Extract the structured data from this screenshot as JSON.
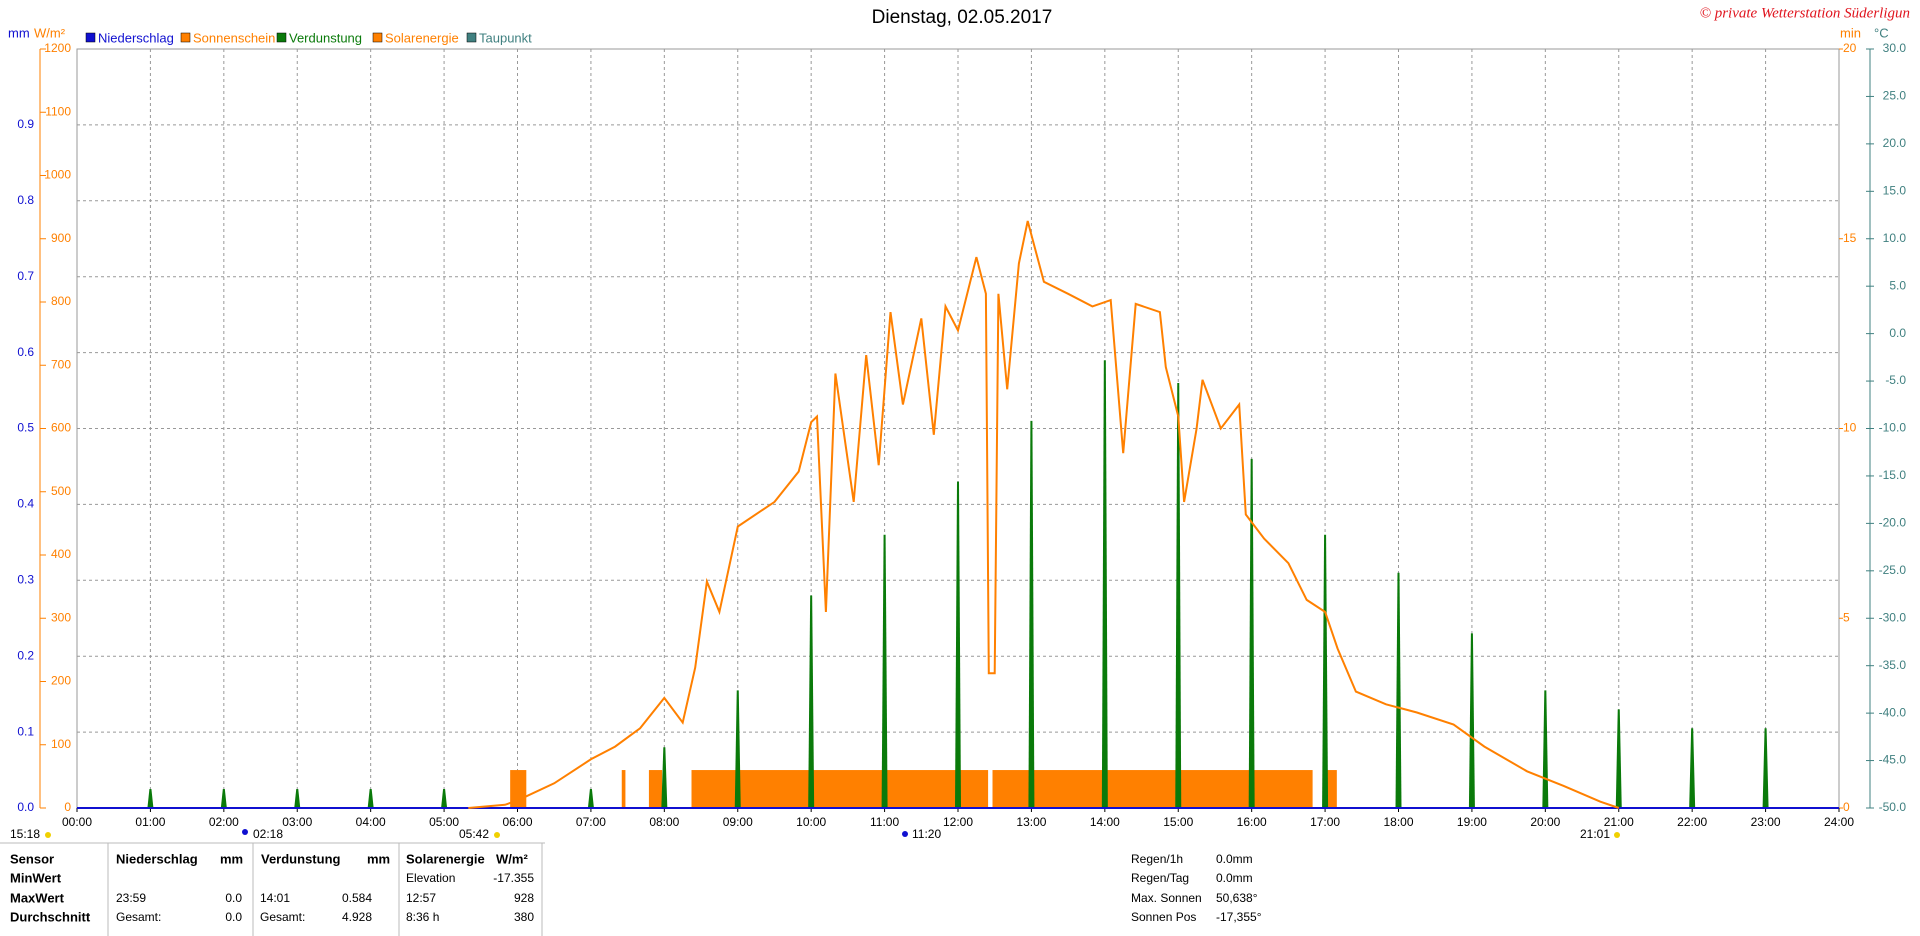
{
  "chart_data": {
    "type": "line",
    "title": "Dienstag, 02.05.2017",
    "credit": "© private Wetterstation Süderligun",
    "y_unit": "W/m²",
    "y2_unit": "mm",
    "y3_unit": "min",
    "y4_unit": "°C",
    "grid": true,
    "xlim": [
      0,
      24
    ],
    "xticks": [
      {
        "value": 0,
        "label": "00:00"
      },
      {
        "value": 1,
        "label": "01:00"
      },
      {
        "value": 2,
        "label": "02:00"
      },
      {
        "value": 3,
        "label": "03:00"
      },
      {
        "value": 4,
        "label": "04:00"
      },
      {
        "value": 5,
        "label": "05:00"
      },
      {
        "value": 6,
        "label": "06:00"
      },
      {
        "value": 7,
        "label": "07:00"
      },
      {
        "value": 8,
        "label": "08:00"
      },
      {
        "value": 9,
        "label": "09:00"
      },
      {
        "value": 10,
        "label": "10:00"
      },
      {
        "value": 11,
        "label": "11:00"
      },
      {
        "value": 12,
        "label": "12:00"
      },
      {
        "value": 13,
        "label": "13:00"
      },
      {
        "value": 14,
        "label": "14:00"
      },
      {
        "value": 15,
        "label": "15:00"
      },
      {
        "value": 16,
        "label": "16:00"
      },
      {
        "value": 17,
        "label": "17:00"
      },
      {
        "value": 18,
        "label": "18:00"
      },
      {
        "value": 19,
        "label": "19:00"
      },
      {
        "value": 20,
        "label": "20:00"
      },
      {
        "value": 21,
        "label": "21:00"
      },
      {
        "value": 22,
        "label": "22:00"
      },
      {
        "value": 23,
        "label": "23:00"
      },
      {
        "value": 24,
        "label": "24:00"
      }
    ],
    "ylim": [
      0,
      1200
    ],
    "yticks": [
      0,
      100,
      200,
      300,
      400,
      500,
      600,
      700,
      800,
      900,
      1000,
      1100,
      1200
    ],
    "y2lim": [
      0,
      1
    ],
    "y2ticks": [
      {
        "value": 0,
        "label": "0.0"
      },
      0.1,
      0.2,
      0.3,
      0.4,
      0.5,
      0.6,
      0.7,
      0.8,
      0.9
    ],
    "y3lim": [
      0,
      20
    ],
    "y3ticks": [
      0,
      5,
      10,
      15,
      20
    ],
    "y4lim": [
      -50,
      30
    ],
    "y4ticks": [
      {
        "value": -50,
        "label": "-50.0"
      },
      {
        "value": -45,
        "label": "-45.0"
      },
      {
        "value": -40,
        "label": "-40.0"
      },
      {
        "value": -35,
        "label": "-35.0"
      },
      {
        "value": -30,
        "label": "-30.0"
      },
      {
        "value": -25,
        "label": "-25.0"
      },
      {
        "value": -20,
        "label": "-20.0"
      },
      {
        "value": -15,
        "label": "-15.0"
      },
      {
        "value": -10,
        "label": "-10.0"
      },
      {
        "value": -5,
        "label": "-5.0"
      },
      {
        "value": 0,
        "label": "0.0"
      },
      {
        "value": 5,
        "label": "5.0"
      },
      {
        "value": 10,
        "label": "10.0"
      },
      {
        "value": 15,
        "label": "15.0"
      },
      {
        "value": 20,
        "label": "20.0"
      },
      {
        "value": 25,
        "label": "25.0"
      },
      {
        "value": 30,
        "label": "30.0"
      }
    ],
    "series": [
      {
        "name": "Niederschlag",
        "color": "#1010d0",
        "kind": "line",
        "axis": "y2",
        "x": [
          0,
          24
        ],
        "values": [
          0,
          0
        ]
      },
      {
        "name": "Sonnenschein",
        "color": "#ff8000",
        "kind": "bins",
        "axis": "y3",
        "bins": [
          5.9,
          6.12,
          7.42,
          7.47,
          7.79,
          7.97,
          8.37,
          12.41,
          12.47,
          16.83,
          17.01,
          17.16
        ],
        "values": [
          1,
          0,
          1,
          0,
          1,
          0,
          1,
          0,
          1,
          0,
          1
        ]
      },
      {
        "name": "Verdunstung",
        "color": "#0a7a0a",
        "kind": "spike",
        "axis": "y2",
        "x": [
          1,
          2,
          3,
          4,
          5,
          7,
          8,
          9,
          10,
          11,
          12,
          13,
          14,
          15,
          16,
          17,
          18,
          19,
          20,
          21,
          22,
          23
        ],
        "values": [
          0.025,
          0.025,
          0.025,
          0.025,
          0.025,
          0.025,
          0.08,
          0.155,
          0.28,
          0.36,
          0.43,
          0.51,
          0.59,
          0.56,
          0.46,
          0.36,
          0.31,
          0.23,
          0.155,
          0.13,
          0.105,
          0.105
        ]
      },
      {
        "name": "Solarenergie",
        "color": "#ff8000",
        "kind": "line",
        "axis": "y",
        "x": [
          5.33,
          5.83,
          6.0,
          6.5,
          7.0,
          7.33,
          7.67,
          8.0,
          8.25,
          8.42,
          8.58,
          8.75,
          9.0,
          9.5,
          9.83,
          10.0,
          10.08,
          10.2,
          10.33,
          10.58,
          10.75,
          10.92,
          11.08,
          11.25,
          11.5,
          11.67,
          11.83,
          12.0,
          12.25,
          12.38,
          12.42,
          12.5,
          12.55,
          12.67,
          12.83,
          12.95,
          13.17,
          13.5,
          13.83,
          14.08,
          14.25,
          14.42,
          14.75,
          14.83,
          15.0,
          15.08,
          15.25,
          15.33,
          15.58,
          15.83,
          15.92,
          16.17,
          16.5,
          16.75,
          17.0,
          17.17,
          17.42,
          17.83,
          18.25,
          18.75,
          19.17,
          19.75,
          20.25,
          20.75,
          21.0
        ],
        "values": [
          0,
          5,
          12,
          39,
          77,
          97,
          126,
          174,
          135,
          222,
          358,
          310,
          445,
          484,
          532,
          610,
          619,
          310,
          687,
          484,
          716,
          542,
          784,
          638,
          774,
          590,
          793,
          755,
          871,
          813,
          213,
          213,
          813,
          662,
          861,
          928,
          832,
          813,
          793,
          803,
          561,
          797,
          784,
          697,
          619,
          484,
          600,
          677,
          600,
          638,
          464,
          426,
          387,
          329,
          310,
          252,
          184,
          164,
          151,
          132,
          97,
          58,
          35,
          10,
          0
        ]
      },
      {
        "name": "Taupunkt",
        "color": "#408080",
        "kind": "line",
        "axis": "y4",
        "x": [],
        "values": []
      }
    ],
    "markers": [
      "15:18",
      "02:18",
      "05:42",
      "11:20",
      "21:01"
    ]
  },
  "sensor_table": {
    "header": {
      "sensor": "Sensor",
      "rain": [
        "Niederschlag",
        "mm"
      ],
      "evap": [
        "Verdunstung",
        "mm"
      ],
      "solar": [
        "Solarenergie",
        "W/m²"
      ]
    },
    "rows": [
      {
        "label": "MinWert",
        "solar": [
          "Elevation",
          "-17.355"
        ]
      },
      {
        "label": "MaxWert",
        "rain": [
          "23:59",
          "0.0"
        ],
        "evap": [
          "14:01",
          "0.584"
        ],
        "solar": [
          "12:57",
          "928"
        ]
      },
      {
        "label": "Durchschnitt",
        "rain": [
          "Gesamt:",
          "0.0"
        ],
        "evap": [
          "Gesamt:",
          "4.928"
        ],
        "solar": [
          "8:36 h",
          "380"
        ]
      }
    ]
  },
  "sun_panel": {
    "rows": [
      [
        "Regen/1h",
        "0.0mm"
      ],
      [
        "Regen/Tag",
        "0.0mm"
      ],
      [
        "Max. Sonnen",
        "50,638°"
      ],
      [
        "Sonnen Pos",
        "-17,355°"
      ]
    ]
  }
}
